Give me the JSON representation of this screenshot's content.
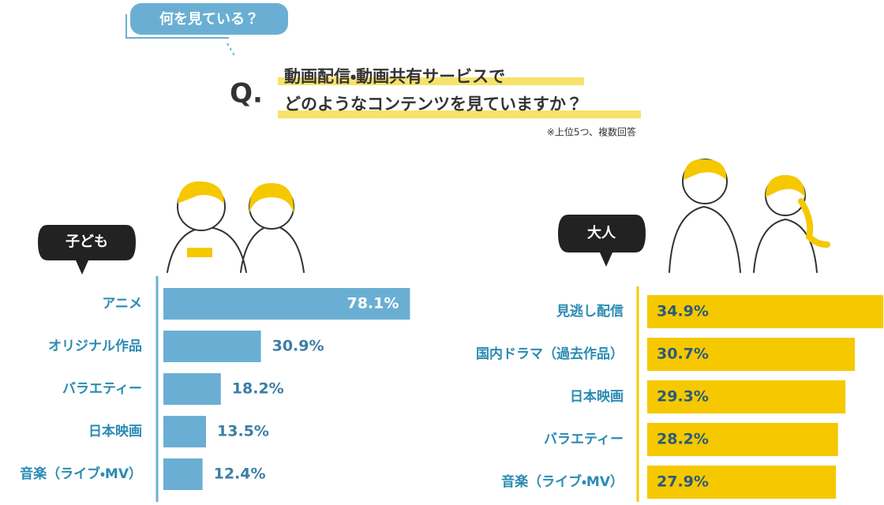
{
  "header": {
    "tag": "何を見ている？",
    "q": "Q.",
    "question_lines": [
      "動画配信・動画共有サービスで",
      "どのようなコンテンツを見ていますか？"
    ],
    "note": "※上位5つ、複数回答"
  },
  "chart_data": [
    {
      "type": "bar",
      "title": "子ども",
      "categories": [
        "アニメ",
        "オリジナル作品",
        "バラエティー",
        "日本映画",
        "音楽（ライブ・MV）"
      ],
      "values": [
        78.1,
        30.9,
        18.2,
        13.5,
        12.4
      ],
      "value_labels": [
        "78.1%",
        "30.9%",
        "18.2%",
        "13.5%",
        "12.4%"
      ],
      "color": "#6aafd3",
      "xlim": [
        0,
        80
      ]
    },
    {
      "type": "bar",
      "title": "大人",
      "categories": [
        "見逃し配信",
        "国内ドラマ（過去作品）",
        "日本映画",
        "バラエティー",
        "音楽（ライブ・MV）"
      ],
      "values": [
        34.9,
        30.7,
        29.3,
        28.2,
        27.9
      ],
      "value_labels": [
        "34.9%",
        "30.7%",
        "29.3%",
        "28.2%",
        "27.9%"
      ],
      "color": "#f5c800",
      "xlim": [
        0,
        35
      ]
    }
  ]
}
